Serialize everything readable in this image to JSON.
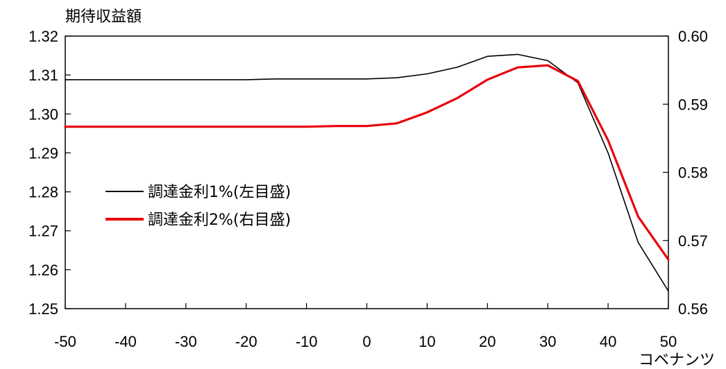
{
  "chart_data": {
    "type": "line",
    "y_left_title": "期待収益額",
    "x_axis_title": "コベナンツ",
    "x": [
      -50,
      -45,
      -40,
      -35,
      -30,
      -25,
      -20,
      -15,
      -10,
      -5,
      0,
      5,
      10,
      15,
      20,
      25,
      30,
      35,
      40,
      45,
      50
    ],
    "xlim": [
      -50,
      50
    ],
    "x_ticks": [
      -50,
      -40,
      -30,
      -20,
      -10,
      0,
      10,
      20,
      30,
      40,
      50
    ],
    "y_left_lim": [
      1.25,
      1.32
    ],
    "y_left_ticks": [
      "1.32",
      "1.31",
      "1.30",
      "1.29",
      "1.28",
      "1.27",
      "1.26",
      "1.25"
    ],
    "y_right_lim": [
      0.56,
      0.6
    ],
    "y_right_ticks": [
      "0.60",
      "0.59",
      "0.58",
      "0.57",
      "0.56"
    ],
    "grid": false,
    "legend_position": "center-left",
    "series": [
      {
        "name": "調達金利1%(左目盛)",
        "axis": "left",
        "color": "#000000",
        "values": [
          1.3088,
          1.3088,
          1.3088,
          1.3088,
          1.3088,
          1.3088,
          1.3088,
          1.309,
          1.309,
          1.309,
          1.309,
          1.3093,
          1.3103,
          1.312,
          1.3148,
          1.3153,
          1.3137,
          1.308,
          1.29,
          1.267,
          1.2545
        ]
      },
      {
        "name": "調達金利2%(右目盛)",
        "axis": "right",
        "color": "#e8000b",
        "values": [
          0.5867,
          0.5867,
          0.5867,
          0.5867,
          0.5867,
          0.5867,
          0.5867,
          0.5867,
          0.5867,
          0.5868,
          0.5868,
          0.5872,
          0.5888,
          0.5909,
          0.5936,
          0.5954,
          0.5957,
          0.5934,
          0.5847,
          0.5735,
          0.5672
        ]
      }
    ]
  }
}
